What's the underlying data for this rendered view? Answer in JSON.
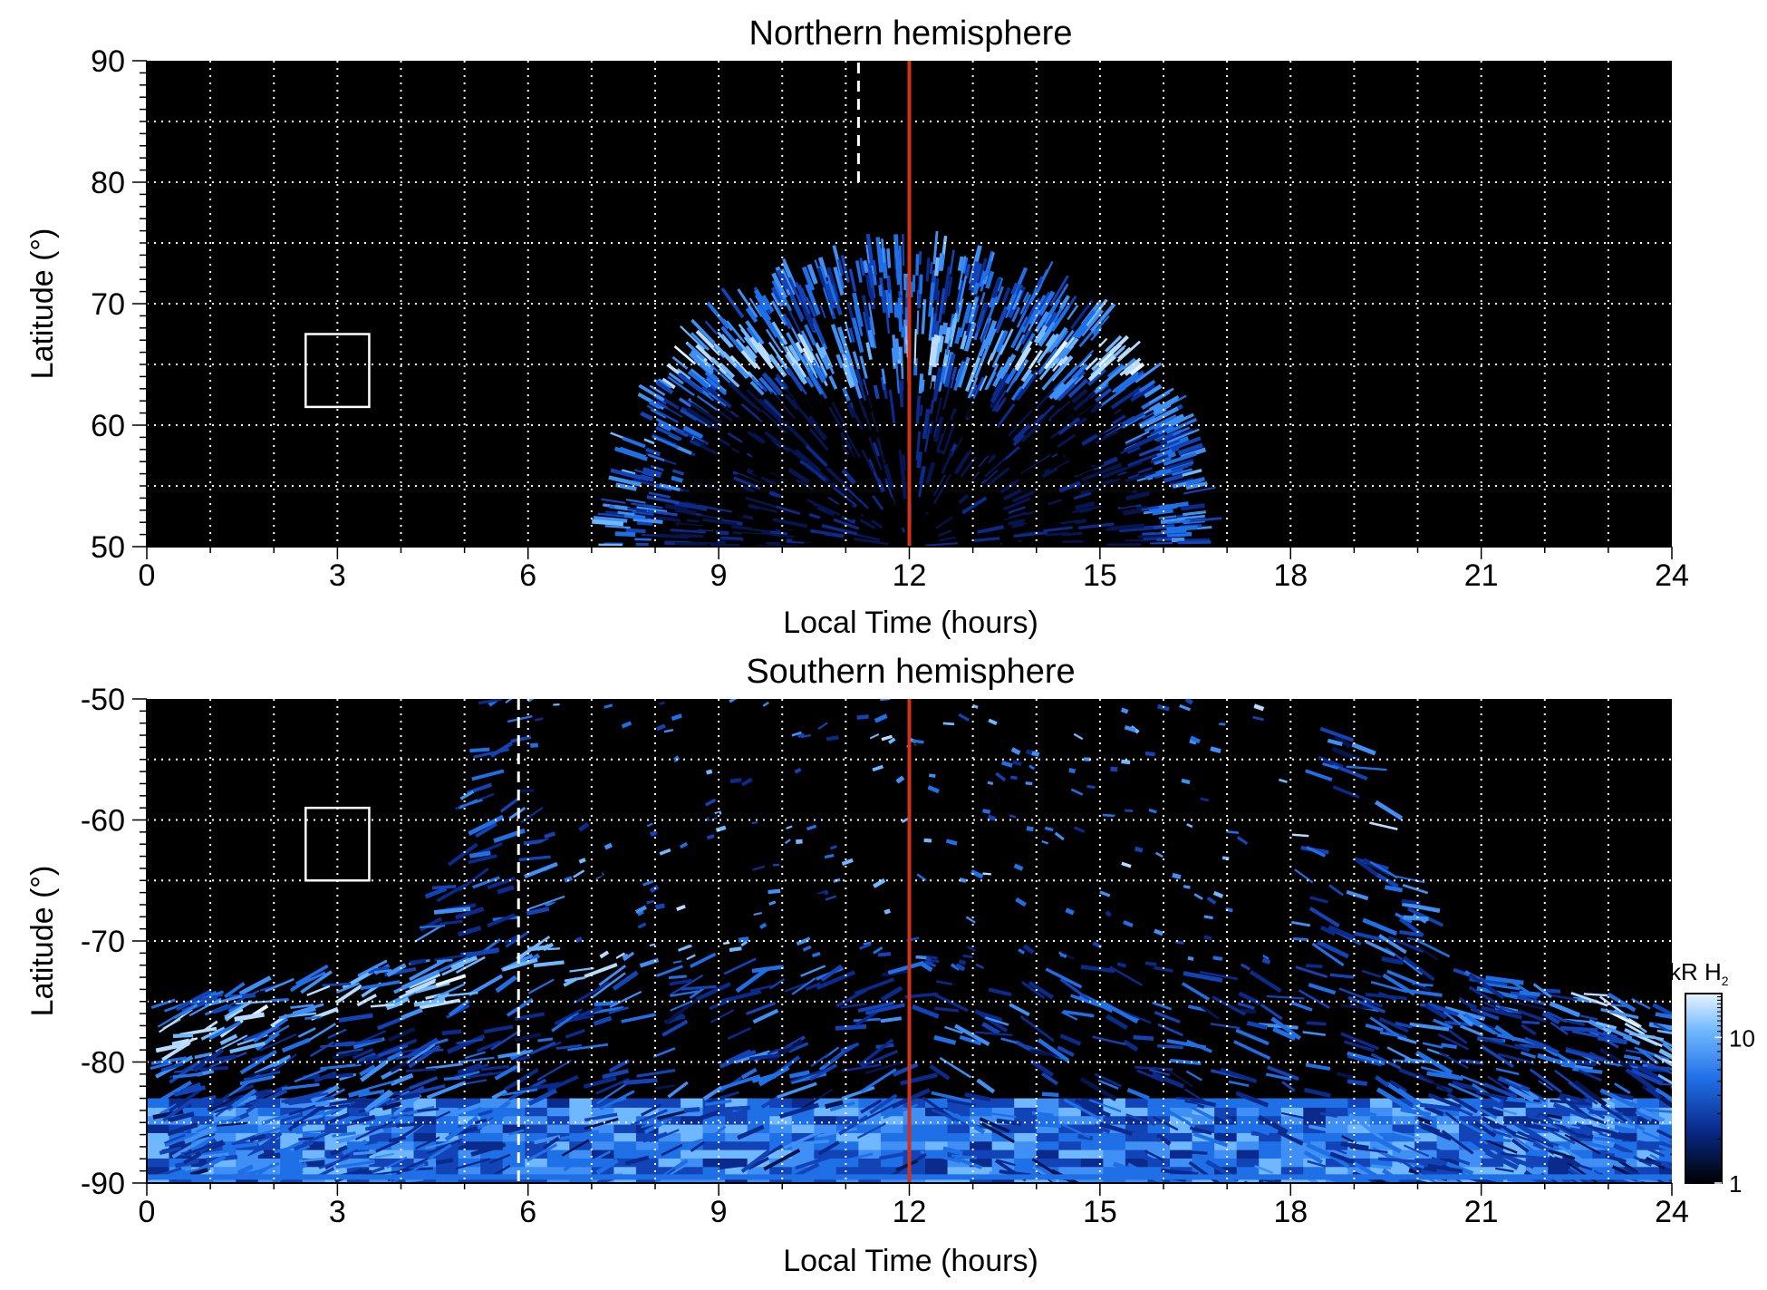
{
  "chart_data": [
    {
      "type": "heatmap",
      "title": "Northern hemisphere",
      "xlabel": "Local Time (hours)",
      "ylabel": "Latitude (°)",
      "xlim": [
        0,
        24
      ],
      "ylim": [
        50,
        90
      ],
      "xticks": [
        "0",
        "3",
        "6",
        "9",
        "12",
        "15",
        "18",
        "21",
        "24"
      ],
      "yticks": [
        "50",
        "60",
        "70",
        "80",
        "90"
      ],
      "grid": true,
      "noon_line_lt": 12,
      "noon_line_color": "#d0321c",
      "dashed_line": {
        "lt": 11.2,
        "lat_from": 80,
        "lat_to": 90
      },
      "box": {
        "lt": [
          2.5,
          3.5
        ],
        "lat": [
          61.5,
          67.5
        ]
      },
      "emission_region": {
        "lt_range": [
          7.6,
          16.7
        ],
        "center_lt": 12.0,
        "max_lat": 73.5,
        "oval_lat": 65,
        "inner_dark_lat_range": [
          50,
          62
        ]
      }
    },
    {
      "type": "heatmap",
      "title": "Southern hemisphere",
      "xlabel": "Local Time (hours)",
      "ylabel": "Latitude (°)",
      "xlim": [
        0,
        24
      ],
      "ylim": [
        -90,
        -50
      ],
      "xticks": [
        "0",
        "3",
        "6",
        "9",
        "12",
        "15",
        "18",
        "21",
        "24"
      ],
      "yticks": [
        "-50",
        "-60",
        "-70",
        "-80",
        "-90"
      ],
      "grid": true,
      "noon_line_lt": 12,
      "noon_line_color": "#d0321c",
      "dashed_line": {
        "lt": 5.85,
        "lat_from": -50,
        "lat_to": -90
      },
      "box": {
        "lt": [
          2.5,
          3.5
        ],
        "lat": [
          -59,
          -65
        ]
      },
      "emission_region": {
        "lt_range": [
          0,
          24
        ],
        "edge_lat_dawn": -75,
        "edge_lat_dusk": -75,
        "oval_points": [
          [
            1.0,
            -79
          ],
          [
            3.0,
            -76
          ],
          [
            5.0,
            -72
          ],
          [
            7.0,
            -71
          ],
          [
            9.0,
            -69
          ],
          [
            18.5,
            -60
          ],
          [
            20.0,
            -74
          ],
          [
            22.5,
            -80
          ]
        ]
      },
      "colorbar": {
        "label": "kR H",
        "label_sub": "2",
        "scale": "log",
        "ticks": [
          "1",
          "10"
        ],
        "range": [
          1,
          20
        ],
        "colors": [
          "#000000",
          "#0a2a8c",
          "#1f6fe6",
          "#6fb7ff",
          "#e6f4ff"
        ]
      }
    }
  ]
}
